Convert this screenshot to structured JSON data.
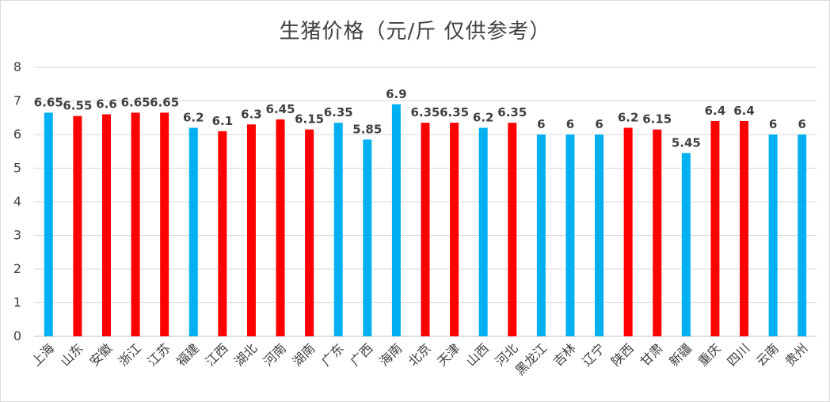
{
  "chart_data": {
    "type": "bar",
    "title": "生猪价格（元/斤 仅供参考）",
    "xlabel": "",
    "ylabel": "",
    "ylim": [
      0,
      8
    ],
    "yticks": [
      0,
      1,
      2,
      3,
      4,
      5,
      6,
      7,
      8
    ],
    "grid": true,
    "categories": [
      "上海",
      "山东",
      "安徽",
      "浙江",
      "江苏",
      "福建",
      "江西",
      "湖北",
      "河南",
      "湖南",
      "广东",
      "广西",
      "海南",
      "北京",
      "天津",
      "山西",
      "河北",
      "黑龙江",
      "吉林",
      "辽宁",
      "陕西",
      "甘肃",
      "新疆",
      "重庆",
      "四川",
      "云南",
      "贵州"
    ],
    "values": [
      6.65,
      6.55,
      6.6,
      6.65,
      6.65,
      6.2,
      6.1,
      6.3,
      6.45,
      6.15,
      6.35,
      5.85,
      6.9,
      6.35,
      6.35,
      6.2,
      6.35,
      6,
      6,
      6,
      6.2,
      6.15,
      5.45,
      6.4,
      6.4,
      6,
      6
    ],
    "colors": [
      "#00b0f0",
      "#ff0000",
      "#ff0000",
      "#ff0000",
      "#ff0000",
      "#00b0f0",
      "#ff0000",
      "#ff0000",
      "#ff0000",
      "#ff0000",
      "#00b0f0",
      "#00b0f0",
      "#00b0f0",
      "#ff0000",
      "#ff0000",
      "#00b0f0",
      "#ff0000",
      "#00b0f0",
      "#00b0f0",
      "#00b0f0",
      "#ff0000",
      "#ff0000",
      "#00b0f0",
      "#ff0000",
      "#ff0000",
      "#00b0f0",
      "#00b0f0"
    ]
  }
}
